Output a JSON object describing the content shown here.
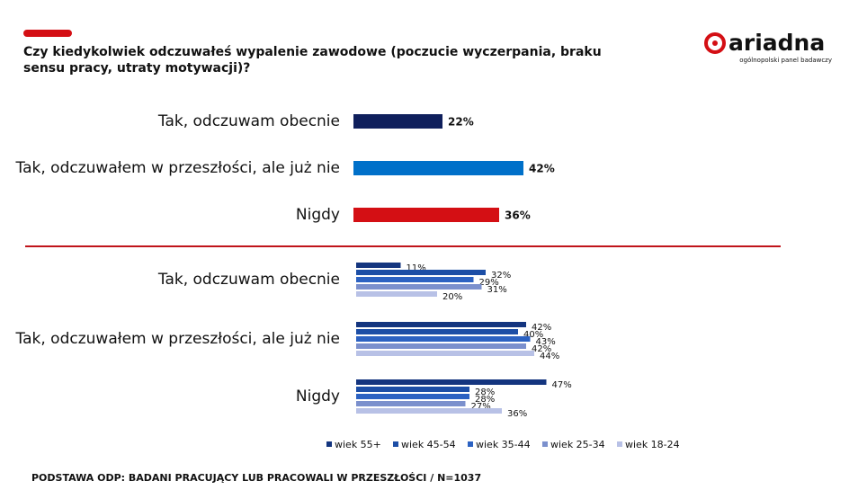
{
  "header": {
    "title_lines": [
      "Czy kiedykolwiek odczuwałeś wypalenie zawodowe (poczucie wyczerpania, braku",
      "sensu pracy, utraty motywacji)?"
    ],
    "logo": "ariadna",
    "tagline": "ogólnopolski panel badawczy"
  },
  "footer": "PODSTAWA ODP: BADANI PRACUJĄCY LUB PRACOWALI W PRZESZŁOŚCI / N=1037",
  "chart_data": [
    {
      "type": "hbar",
      "categories": [
        "Tak, odczuwam obecnie",
        "Tak, odczuwałem w przeszłości, ale już nie",
        "Nigdy"
      ],
      "values": [
        22,
        42,
        36
      ],
      "value_labels": [
        "22%",
        "42%",
        "36%"
      ],
      "colors": [
        "#0f1f5c",
        "#0070c9",
        "#d40f14"
      ]
    },
    {
      "type": "grouped-hbar",
      "categories": [
        "Tak, odczuwam obecnie",
        "Tak, odczuwałem w przeszłości, ale już nie",
        "Nigdy"
      ],
      "series": [
        {
          "name": "wiek 55+",
          "color": "#14357f",
          "values": [
            11,
            42,
            47
          ],
          "value_labels": [
            "11%",
            "42%",
            "47%"
          ]
        },
        {
          "name": "wiek 45-54",
          "color": "#1c4ea6",
          "values": [
            32,
            40,
            28
          ],
          "value_labels": [
            "32%",
            "40%",
            "28%"
          ]
        },
        {
          "name": "wiek 35-44",
          "color": "#2c62c2",
          "values": [
            29,
            43,
            28
          ],
          "value_labels": [
            "29%",
            "43%",
            "28%"
          ]
        },
        {
          "name": "wiek 25-34",
          "color": "#7b90cd",
          "values": [
            31,
            42,
            27
          ],
          "value_labels": [
            "31%",
            "42%",
            "27%"
          ]
        },
        {
          "name": "wiek 18-24",
          "color": "#b8c1e6",
          "values": [
            20,
            44,
            36
          ],
          "value_labels": [
            "20%",
            "44%",
            "36%"
          ]
        }
      ],
      "legend": "bottom"
    }
  ]
}
